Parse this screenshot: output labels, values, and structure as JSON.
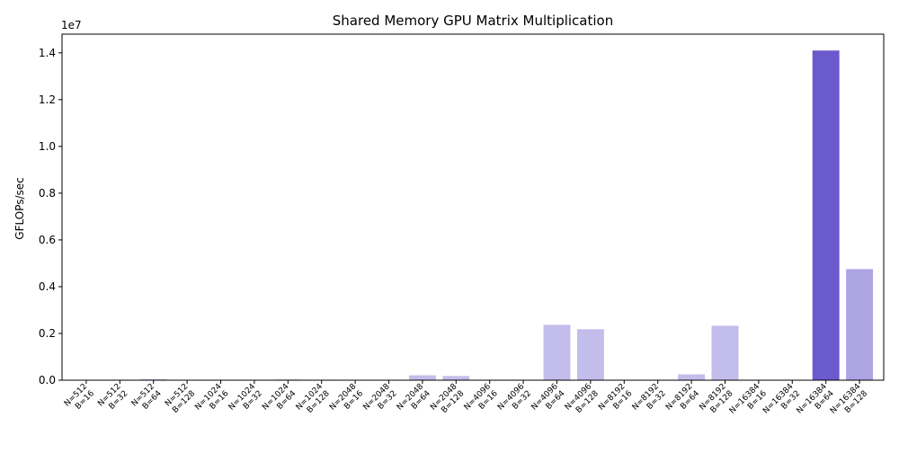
{
  "chart_data": {
    "type": "bar",
    "title": "Shared Memory GPU Matrix Multiplication",
    "xlabel": "",
    "ylabel": "GFLOPs/sec",
    "y_offset_label": "1e7",
    "ylim": [
      0,
      14800000
    ],
    "yticks": [
      0,
      2000000,
      4000000,
      6000000,
      8000000,
      10000000,
      12000000,
      14000000
    ],
    "ytick_labels": [
      "0.0",
      "0.2",
      "0.4",
      "0.6",
      "0.8",
      "1.0",
      "1.2",
      "1.4"
    ],
    "grid": false,
    "legend": "none",
    "base_color": "#6a5acd",
    "categories": [
      [
        "N=512",
        "B=16"
      ],
      [
        "N=512",
        "B=32"
      ],
      [
        "N=512",
        "B=64"
      ],
      [
        "N=512",
        "B=128"
      ],
      [
        "N=1024",
        "B=16"
      ],
      [
        "N=1024",
        "B=32"
      ],
      [
        "N=1024",
        "B=64"
      ],
      [
        "N=1024",
        "B=128"
      ],
      [
        "N=2048",
        "B=16"
      ],
      [
        "N=2048",
        "B=32"
      ],
      [
        "N=2048",
        "B=64"
      ],
      [
        "N=2048",
        "B=128"
      ],
      [
        "N=4096",
        "B=16"
      ],
      [
        "N=4096",
        "B=32"
      ],
      [
        "N=4096",
        "B=64"
      ],
      [
        "N=4096",
        "B=128"
      ],
      [
        "N=8192",
        "B=16"
      ],
      [
        "N=8192",
        "B=32"
      ],
      [
        "N=8192",
        "B=64"
      ],
      [
        "N=8192",
        "B=128"
      ],
      [
        "N=16384",
        "B=16"
      ],
      [
        "N=16384",
        "B=32"
      ],
      [
        "N=16384",
        "B=64"
      ],
      [
        "N=16384",
        "B=128"
      ]
    ],
    "values": [
      1000,
      2000,
      40000,
      8000,
      3000,
      5000,
      30000,
      20000,
      6000,
      9000,
      210000,
      180000,
      7000,
      8000,
      2370000,
      2180000,
      8000,
      10000,
      250000,
      2330000,
      9000,
      12000,
      14100000,
      4750000
    ],
    "alphas": [
      0.4,
      0.4,
      0.4,
      0.4,
      0.4,
      0.4,
      0.4,
      0.4,
      0.4,
      0.4,
      0.4,
      0.4,
      0.4,
      0.4,
      0.4,
      0.4,
      0.4,
      0.4,
      0.4,
      0.4,
      0.4,
      0.4,
      1.0,
      0.55
    ]
  }
}
